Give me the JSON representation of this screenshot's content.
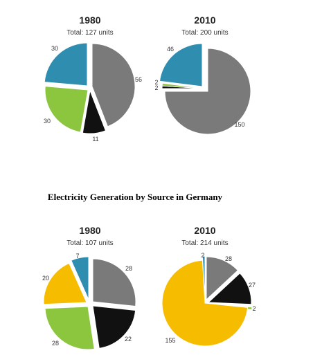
{
  "section_title": "Electricity Generation by Source in Germany",
  "colors": {
    "gray": "#7a7a7a",
    "black": "#111111",
    "green": "#8cc63f",
    "blue": "#2f8db0",
    "yellow": "#f5bc00",
    "line": "#ffffff"
  },
  "chart_data": [
    {
      "type": "pie",
      "title": "1980",
      "subtitle": "Total: 127 units",
      "slices": [
        {
          "value": 56,
          "color": "gray"
        },
        {
          "value": 11,
          "color": "black"
        },
        {
          "value": 30,
          "color": "green"
        },
        {
          "value": 30,
          "color": "blue"
        }
      ]
    },
    {
      "type": "pie",
      "title": "2010",
      "subtitle": "Total: 200 units",
      "slices": [
        {
          "value": 150,
          "color": "gray"
        },
        {
          "value": 2,
          "color": "black"
        },
        {
          "value": 2,
          "color": "green"
        },
        {
          "value": 46,
          "color": "blue"
        }
      ]
    },
    {
      "type": "pie",
      "title": "1980",
      "subtitle": "Total: 107 units",
      "slices": [
        {
          "value": 28,
          "color": "gray"
        },
        {
          "value": 22,
          "color": "black"
        },
        {
          "value": 28,
          "color": "green"
        },
        {
          "value": 20,
          "color": "yellow"
        },
        {
          "value": 7,
          "color": "blue"
        }
      ]
    },
    {
      "type": "pie",
      "title": "2010",
      "subtitle": "Total: 214 units",
      "slices": [
        {
          "value": 28,
          "color": "gray"
        },
        {
          "value": 27,
          "color": "black"
        },
        {
          "value": 2,
          "color": "green"
        },
        {
          "value": 155,
          "color": "yellow"
        },
        {
          "value": 2,
          "color": "blue"
        }
      ]
    }
  ]
}
